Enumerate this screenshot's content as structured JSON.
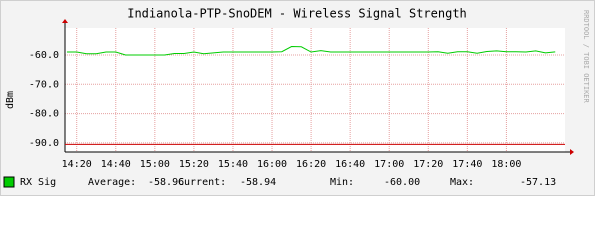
{
  "chart_data": {
    "type": "line",
    "title": "Indianola-PTP-SnoDEM - Wireless Signal Strength",
    "y_label": "dBm",
    "watermark": "RRDTOOL / TOBI OETIKER",
    "x": [
      855,
      860,
      865,
      870,
      875,
      880,
      885,
      890,
      895,
      900,
      905,
      910,
      915,
      920,
      925,
      930,
      935,
      940,
      945,
      950,
      955,
      960,
      965,
      970,
      975,
      980,
      985,
      990,
      995,
      1000,
      1005,
      1010,
      1015,
      1020,
      1025,
      1030,
      1035,
      1040,
      1045,
      1050,
      1055,
      1060,
      1065,
      1070,
      1075,
      1080,
      1085,
      1090,
      1095,
      1100,
      1105
    ],
    "series": [
      {
        "name": "RX Sig",
        "color": "#00cc00",
        "values": [
          -59.0,
          -59.0,
          -59.6,
          -59.6,
          -59.0,
          -59.0,
          -60.0,
          -60.0,
          -60.0,
          -60.0,
          -60.0,
          -59.5,
          -59.5,
          -59.0,
          -59.6,
          -59.3,
          -59.0,
          -59.0,
          -59.0,
          -59.0,
          -59.0,
          -59.0,
          -58.9,
          -57.13,
          -57.2,
          -59.0,
          -58.5,
          -59.0,
          -59.0,
          -59.0,
          -59.0,
          -59.0,
          -59.0,
          -59.0,
          -59.0,
          -59.0,
          -59.0,
          -59.0,
          -58.9,
          -59.4,
          -58.9,
          -58.9,
          -59.4,
          -58.8,
          -58.6,
          -58.9,
          -58.9,
          -59.0,
          -58.6,
          -59.3,
          -58.94
        ]
      }
    ],
    "hrule": {
      "value": -90.5,
      "color": "#cc0000"
    },
    "xlim": [
      854,
      1110
    ],
    "xticks": [
      {
        "value": 860,
        "label": "14:20"
      },
      {
        "value": 880,
        "label": "14:40"
      },
      {
        "value": 900,
        "label": "15:00"
      },
      {
        "value": 920,
        "label": "15:20"
      },
      {
        "value": 940,
        "label": "15:40"
      },
      {
        "value": 960,
        "label": "16:00"
      },
      {
        "value": 980,
        "label": "16:20"
      },
      {
        "value": 1000,
        "label": "16:40"
      },
      {
        "value": 1020,
        "label": "17:00"
      },
      {
        "value": 1040,
        "label": "17:20"
      },
      {
        "value": 1060,
        "label": "17:40"
      },
      {
        "value": 1080,
        "label": "18:00"
      }
    ],
    "ylim": [
      -93.1,
      -50.8
    ],
    "yticks": [
      {
        "value": -60,
        "label": "-60.0"
      },
      {
        "value": -70,
        "label": "-70.0"
      },
      {
        "value": -80,
        "label": "-80.0"
      },
      {
        "value": -90,
        "label": "-90.0"
      }
    ],
    "grid": true,
    "stats": {
      "labels": [
        "Average:",
        "Current:",
        "Min:",
        "Max:"
      ],
      "values": [
        -58.96,
        -58.94,
        -60,
        -57.13
      ],
      "value_labels": [
        "-58.96",
        "-58.94",
        "-60.00",
        "-57.13"
      ]
    }
  }
}
